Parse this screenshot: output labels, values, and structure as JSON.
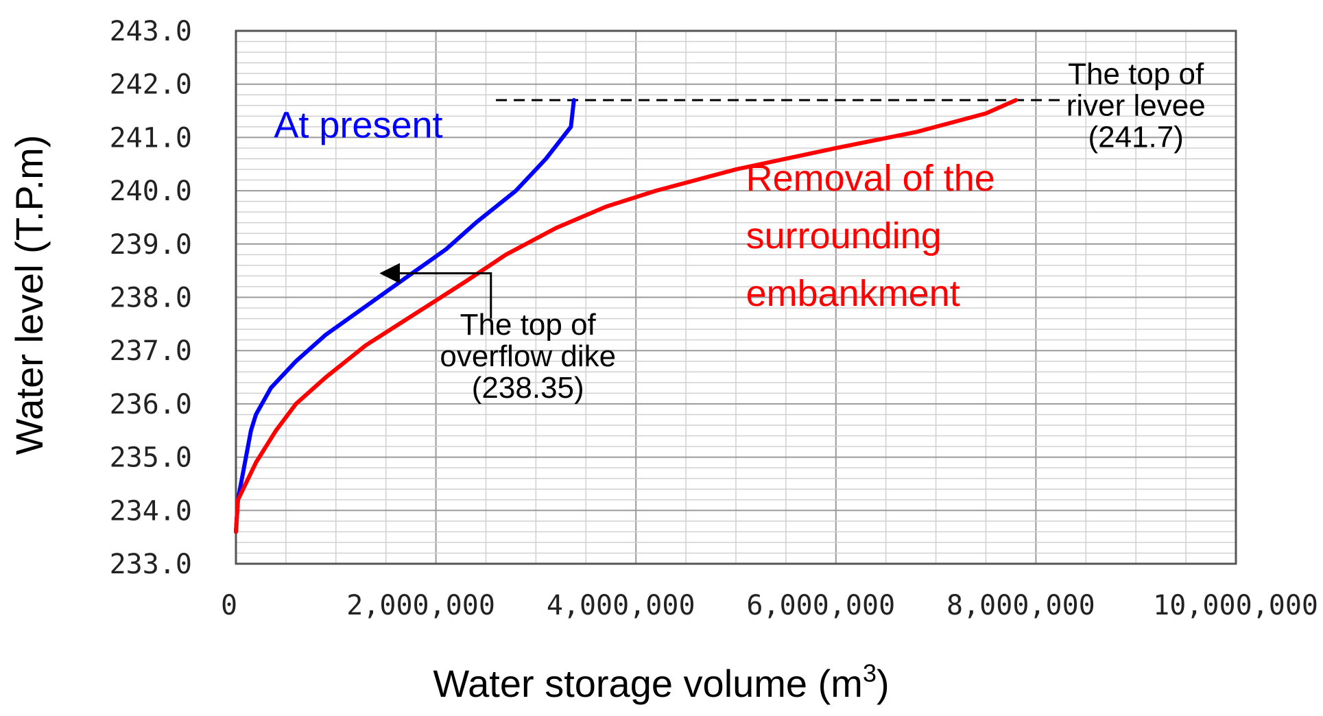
{
  "chart_data": {
    "type": "line",
    "title": "",
    "xlabel": "Water storage volume (m",
    "xlabel_superscript": "3",
    "xlabel_close": ")",
    "ylabel": "Water level (T.P.m)",
    "xlim": [
      0,
      10000000
    ],
    "ylim": [
      233.0,
      243.0
    ],
    "x_ticks": [
      0,
      2000000,
      4000000,
      6000000,
      8000000,
      10000000
    ],
    "x_tick_labels": [
      "0",
      "2,000,000",
      "4,000,000",
      "6,000,000",
      "8,000,000",
      "10,000,000"
    ],
    "y_ticks": [
      233,
      234,
      235,
      236,
      237,
      238,
      239,
      240,
      241,
      242,
      243
    ],
    "y_tick_labels": [
      "233.0",
      "234.0",
      "235.0",
      "236.0",
      "237.0",
      "238.0",
      "239.0",
      "240.0",
      "241.0",
      "242.0",
      "243.0"
    ],
    "grid": true,
    "series": [
      {
        "name": "At present",
        "color": "#0000ff",
        "points": [
          [
            0,
            233.6
          ],
          [
            20000,
            234.2
          ],
          [
            80000,
            234.8
          ],
          [
            150000,
            235.5
          ],
          [
            200000,
            235.8
          ],
          [
            350000,
            236.3
          ],
          [
            600000,
            236.8
          ],
          [
            900000,
            237.3
          ],
          [
            1200000,
            237.7
          ],
          [
            1500000,
            238.1
          ],
          [
            1800000,
            238.5
          ],
          [
            2100000,
            238.9
          ],
          [
            2400000,
            239.4
          ],
          [
            2800000,
            240.0
          ],
          [
            3100000,
            240.6
          ],
          [
            3350000,
            241.2
          ],
          [
            3380000,
            241.7
          ]
        ]
      },
      {
        "name": "Removal of the surrounding embankment",
        "color": "#ff0000",
        "points": [
          [
            0,
            233.6
          ],
          [
            20000,
            234.2
          ],
          [
            200000,
            234.9
          ],
          [
            400000,
            235.5
          ],
          [
            600000,
            236.0
          ],
          [
            900000,
            236.5
          ],
          [
            1300000,
            237.1
          ],
          [
            1800000,
            237.7
          ],
          [
            2300000,
            238.3
          ],
          [
            2700000,
            238.8
          ],
          [
            3200000,
            239.3
          ],
          [
            3700000,
            239.7
          ],
          [
            4200000,
            240.0
          ],
          [
            5000000,
            240.4
          ],
          [
            6000000,
            240.8
          ],
          [
            6800000,
            241.1
          ],
          [
            7500000,
            241.45
          ],
          [
            7800000,
            241.7
          ]
        ]
      }
    ],
    "reference_line": {
      "y": 241.7,
      "x_start": 2600000,
      "x_end": 8300000,
      "style": "dashed",
      "color": "#000000"
    },
    "annotations": [
      {
        "id": "present-label",
        "lines": [
          "At present"
        ],
        "color": "#0000ff",
        "at": [
          380000,
          241.0
        ]
      },
      {
        "id": "removal-label",
        "lines": [
          "Removal of the",
          "surrounding",
          "embankment"
        ],
        "color": "#ff0000",
        "at": [
          5100000,
          240.0
        ]
      },
      {
        "id": "levee-label",
        "lines": [
          "The top of",
          "river levee",
          "(241.7)"
        ],
        "color": "#000000",
        "at": [
          9000000,
          242.0
        ]
      },
      {
        "id": "dike-label",
        "lines": [
          "The top of",
          "overflow dike",
          "(238.35)"
        ],
        "color": "#000000",
        "at": [
          2920000,
          237.3
        ]
      }
    ],
    "arrow": {
      "from": [
        2550000,
        238.45
      ],
      "elbow_y": 237.6,
      "to": [
        1380000,
        238.45
      ],
      "color": "#000000"
    }
  }
}
